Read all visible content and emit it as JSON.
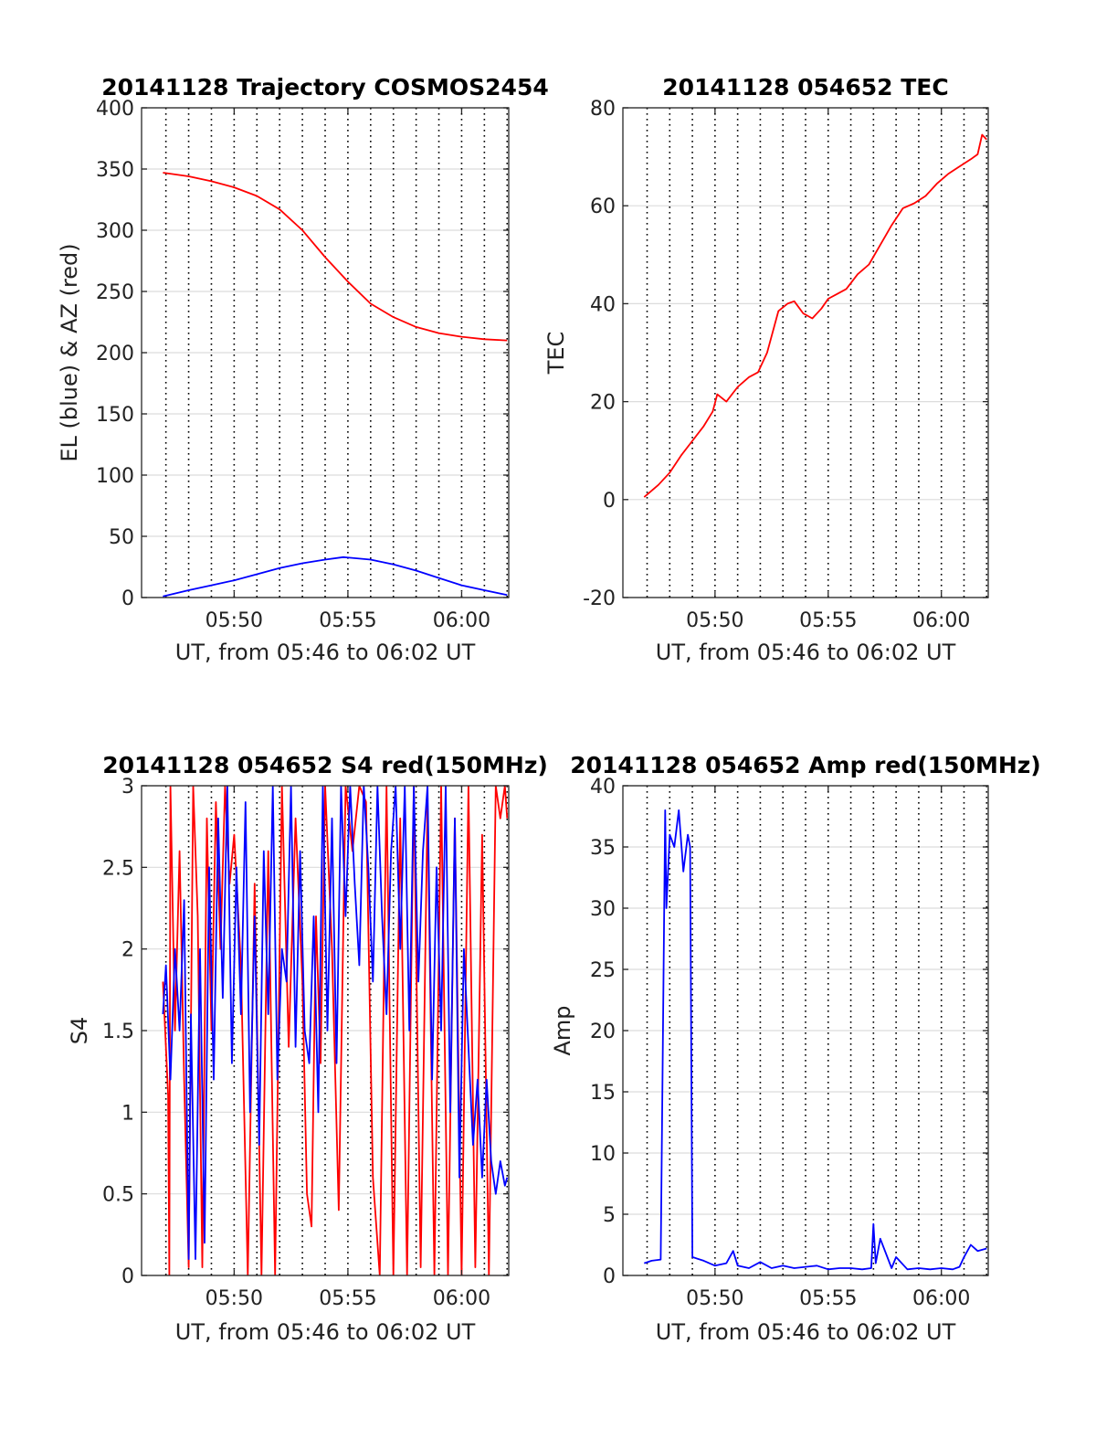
{
  "colors": {
    "red": "#ff0000",
    "blue": "#0000ff",
    "axis": "#262626",
    "hgrid": "#dcdcdc",
    "vgrid": "#000000"
  },
  "chart_data": [
    {
      "id": "p1",
      "type": "line",
      "title": "20141128 Trajectory COSMOS2454",
      "xlabel": "UT, from 05:46 to 06:02 UT",
      "ylabel": "EL (blue) & AZ (red)",
      "x_unit": "minutes after 05:00",
      "xlim": [
        45.93,
        62.07
      ],
      "ylim": [
        0,
        400
      ],
      "xticks": [
        50,
        55,
        60
      ],
      "xtick_labels": [
        "05:50",
        "05:55",
        "06:00"
      ],
      "yticks": [
        0,
        50,
        100,
        150,
        200,
        250,
        300,
        350,
        400
      ],
      "ytick_labels": [
        "0",
        "50",
        "100",
        "150",
        "200",
        "250",
        "300",
        "350",
        "400"
      ],
      "dotted_grid_minutes": [
        47,
        48,
        49,
        50,
        51,
        52,
        53,
        54,
        55,
        56,
        57,
        58,
        59,
        60,
        61,
        62
      ],
      "series": [
        {
          "color": "red",
          "x": [
            46.87,
            48.0,
            49.0,
            50.0,
            51.0,
            52.0,
            53.0,
            54.0,
            55.0,
            56.0,
            57.0,
            58.0,
            59.0,
            60.0,
            61.0,
            62.0
          ],
          "y": [
            347,
            344,
            340,
            335,
            328,
            317,
            300,
            278,
            258,
            240,
            229,
            221,
            216,
            213,
            211,
            210
          ]
        },
        {
          "color": "blue",
          "x": [
            46.87,
            48.0,
            49.0,
            50.0,
            51.0,
            52.0,
            53.0,
            54.0,
            54.8,
            56.0,
            57.0,
            58.0,
            59.0,
            60.0,
            61.0,
            62.0
          ],
          "y": [
            1,
            6,
            10,
            14,
            19,
            24,
            28,
            31,
            33,
            31,
            27,
            22,
            16,
            10,
            6,
            2
          ]
        }
      ]
    },
    {
      "id": "p2",
      "type": "line",
      "title": "20141128 054652 TEC",
      "xlabel": "UT, from 05:46 to 06:02 UT",
      "ylabel": "TEC",
      "x_unit": "minutes after 05:00",
      "xlim": [
        45.93,
        62.07
      ],
      "ylim": [
        -20,
        80
      ],
      "xticks": [
        50,
        55,
        60
      ],
      "xtick_labels": [
        "05:50",
        "05:55",
        "06:00"
      ],
      "yticks": [
        -20,
        0,
        20,
        40,
        60,
        80
      ],
      "ytick_labels": [
        "-20",
        "0",
        "20",
        "40",
        "60",
        "80"
      ],
      "dotted_grid_minutes": [
        47,
        48,
        49,
        50,
        51,
        52,
        53,
        54,
        55,
        56,
        57,
        58,
        59,
        60,
        61,
        62
      ],
      "series": [
        {
          "color": "red",
          "x": [
            46.87,
            47.5,
            48.0,
            48.5,
            49.0,
            49.5,
            49.9,
            50.1,
            50.5,
            51.0,
            51.5,
            51.9,
            52.3,
            52.8,
            53.2,
            53.5,
            53.9,
            54.3,
            54.7,
            55.0,
            55.4,
            55.8,
            56.3,
            56.8,
            57.3,
            57.8,
            58.3,
            58.8,
            59.3,
            59.8,
            60.3,
            60.8,
            61.3,
            61.6,
            61.8,
            62.0
          ],
          "y": [
            0.5,
            3,
            5.5,
            9,
            12,
            15,
            18,
            21.5,
            20,
            23,
            25,
            26,
            30,
            38.5,
            40,
            40.5,
            38,
            37,
            39,
            41,
            42,
            43,
            46,
            48,
            52,
            56,
            59.5,
            60.5,
            62,
            64.5,
            66.5,
            68,
            69.5,
            70.5,
            74.5,
            73.5
          ]
        }
      ]
    },
    {
      "id": "p3",
      "type": "line",
      "title": "20141128 054652 S4 red(150MHz)",
      "xlabel": "UT, from 05:46 to 06:02 UT",
      "ylabel": "S4",
      "x_unit": "minutes after 05:00",
      "xlim": [
        45.93,
        62.07
      ],
      "ylim": [
        0,
        3
      ],
      "xticks": [
        50,
        55,
        60
      ],
      "xtick_labels": [
        "05:50",
        "05:55",
        "06:00"
      ],
      "yticks": [
        0,
        0.5,
        1,
        1.5,
        2,
        2.5,
        3
      ],
      "ytick_labels": [
        "0",
        "0.5",
        "1",
        "1.5",
        "2",
        "2.5",
        "3"
      ],
      "dotted_grid_minutes": [
        47,
        48,
        49,
        50,
        51,
        52,
        53,
        54,
        55,
        56,
        57,
        58,
        59,
        60,
        61,
        62
      ],
      "series": [
        {
          "color": "red",
          "x": [
            46.87,
            47.1,
            47.15,
            47.2,
            47.4,
            47.6,
            47.8,
            48.0,
            48.2,
            48.4,
            48.6,
            48.8,
            49.0,
            49.2,
            49.4,
            49.6,
            49.8,
            50.0,
            50.3,
            50.6,
            50.9,
            51.2,
            51.5,
            51.8,
            52.1,
            52.4,
            52.7,
            53.0,
            53.2,
            53.4,
            53.6,
            53.8,
            54.0,
            54.3,
            54.6,
            54.9,
            55.2,
            55.5,
            55.8,
            56.1,
            56.4,
            56.7,
            57.0,
            57.3,
            57.6,
            57.9,
            58.2,
            58.5,
            58.8,
            59.1,
            59.4,
            59.7,
            60.0,
            60.3,
            60.6,
            60.9,
            61.2,
            61.5,
            61.7,
            61.9,
            62.0
          ],
          "y": [
            1.8,
            1.1,
            0,
            3,
            1.5,
            2.6,
            1.2,
            0.05,
            3,
            2.2,
            0.05,
            2.8,
            1.5,
            2.9,
            2.0,
            3.0,
            2.4,
            2.7,
            1.9,
            0,
            2.4,
            0,
            2.6,
            0,
            3.0,
            1.4,
            2.8,
            1.8,
            0.5,
            0.3,
            2.2,
            1.3,
            3.0,
            2.0,
            0.4,
            3.0,
            2.6,
            3.0,
            2.9,
            0.6,
            0,
            3.0,
            0,
            2.8,
            0,
            3.0,
            0.05,
            2.9,
            0,
            3.0,
            0,
            2.8,
            0,
            3.0,
            0.05,
            2.7,
            0,
            3.0,
            2.8,
            3.0,
            2.8
          ]
        },
        {
          "color": "blue",
          "x": [
            46.87,
            47.0,
            47.2,
            47.4,
            47.6,
            47.8,
            48.0,
            48.1,
            48.3,
            48.5,
            48.7,
            48.9,
            49.1,
            49.3,
            49.5,
            49.7,
            49.9,
            50.1,
            50.3,
            50.5,
            50.7,
            50.9,
            51.1,
            51.3,
            51.5,
            51.7,
            51.9,
            52.1,
            52.3,
            52.5,
            52.7,
            52.9,
            53.1,
            53.3,
            53.5,
            53.7,
            53.9,
            54.1,
            54.3,
            54.5,
            54.7,
            54.9,
            55.1,
            55.3,
            55.5,
            55.7,
            55.9,
            56.1,
            56.3,
            56.5,
            56.7,
            56.9,
            57.1,
            57.3,
            57.5,
            57.7,
            57.9,
            58.1,
            58.3,
            58.5,
            58.7,
            58.9,
            59.1,
            59.3,
            59.5,
            59.7,
            59.9,
            60.1,
            60.3,
            60.5,
            60.7,
            60.9,
            61.1,
            61.3,
            61.5,
            61.7,
            61.9,
            62.0
          ],
          "y": [
            1.6,
            1.9,
            1.2,
            2.0,
            1.5,
            2.3,
            0.1,
            1.6,
            0.1,
            2.0,
            0.2,
            2.5,
            1.2,
            2.8,
            1.7,
            3.0,
            1.3,
            2.5,
            1.6,
            2.9,
            1.0,
            2.2,
            0.8,
            2.6,
            1.6,
            3.0,
            1.2,
            2.0,
            1.8,
            3.0,
            1.4,
            2.6,
            1.5,
            1.3,
            2.2,
            1.0,
            3.0,
            1.5,
            2.8,
            1.3,
            3.0,
            2.2,
            3.0,
            2.4,
            1.9,
            3.0,
            2.5,
            1.8,
            3.0,
            2.2,
            1.6,
            2.6,
            3.0,
            2.0,
            3.0,
            1.5,
            3.0,
            1.8,
            2.6,
            3.0,
            1.2,
            2.5,
            1.5,
            3.0,
            1.0,
            2.8,
            0.6,
            2.0,
            1.4,
            0.8,
            1.2,
            0.6,
            1.2,
            0.7,
            0.5,
            0.7,
            0.55,
            0.6
          ]
        }
      ]
    },
    {
      "id": "p4",
      "type": "line",
      "title": "20141128 054652 Amp red(150MHz)",
      "xlabel": "UT, from 05:46 to 06:02 UT",
      "ylabel": "Amp",
      "x_unit": "minutes after 05:00",
      "xlim": [
        45.93,
        62.07
      ],
      "ylim": [
        0,
        40
      ],
      "xticks": [
        50,
        55,
        60
      ],
      "xtick_labels": [
        "05:50",
        "05:55",
        "06:00"
      ],
      "yticks": [
        0,
        5,
        10,
        15,
        20,
        25,
        30,
        35,
        40
      ],
      "ytick_labels": [
        "0",
        "5",
        "10",
        "15",
        "20",
        "25",
        "30",
        "35",
        "40"
      ],
      "dotted_grid_minutes": [
        47,
        48,
        49,
        50,
        51,
        52,
        53,
        54,
        55,
        56,
        57,
        58,
        59,
        60,
        61,
        62
      ],
      "series": [
        {
          "color": "blue",
          "x": [
            46.87,
            47.2,
            47.6,
            47.8,
            47.85,
            48.0,
            48.2,
            48.4,
            48.6,
            48.8,
            48.9,
            49.0,
            49.5,
            50.0,
            50.5,
            50.8,
            51.0,
            51.5,
            52.0,
            52.5,
            53.0,
            53.5,
            54.0,
            54.5,
            55.0,
            55.5,
            56.0,
            56.5,
            56.9,
            57.0,
            57.1,
            57.3,
            57.8,
            58.0,
            58.5,
            59.0,
            59.5,
            60.0,
            60.5,
            60.8,
            61.0,
            61.3,
            61.6,
            62.0
          ],
          "y": [
            1.0,
            1.2,
            1.3,
            38.0,
            30,
            36,
            35,
            38,
            33,
            36,
            35,
            1.5,
            1.2,
            0.8,
            1.0,
            2.0,
            0.8,
            0.6,
            1.1,
            0.6,
            0.8,
            0.6,
            0.7,
            0.8,
            0.5,
            0.6,
            0.6,
            0.5,
            0.6,
            4.2,
            1.0,
            3.0,
            0.6,
            1.5,
            0.5,
            0.6,
            0.5,
            0.6,
            0.5,
            0.7,
            1.5,
            2.5,
            2.0,
            2.2
          ]
        }
      ]
    }
  ]
}
